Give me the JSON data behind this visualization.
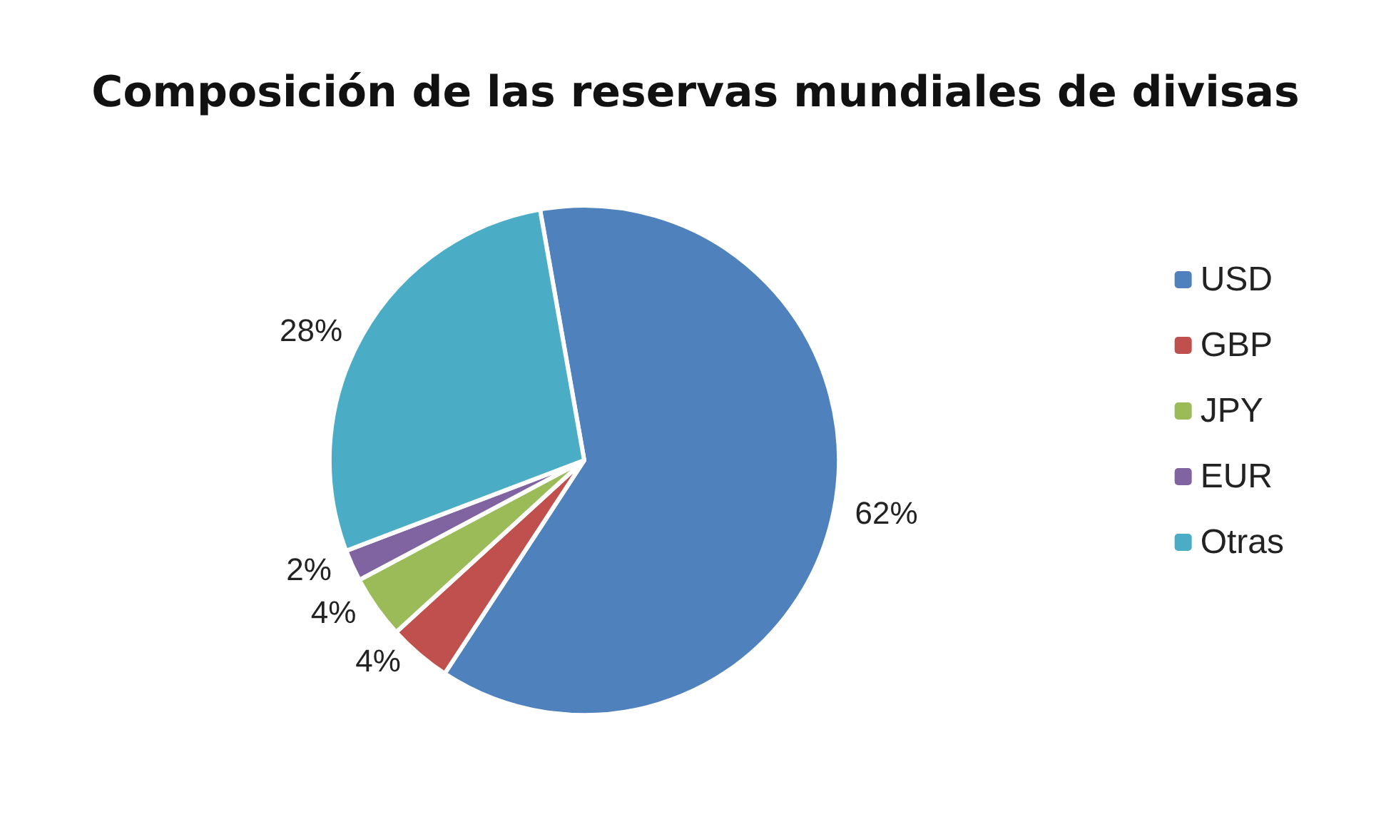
{
  "chart_data": {
    "type": "pie",
    "title": "Composición de las reservas mundiales de divisas",
    "categories": [
      "USD",
      "GBP",
      "JPY",
      "EUR",
      "Otras"
    ],
    "values": [
      62,
      4,
      4,
      2,
      28
    ],
    "colors": [
      "#4f81bd",
      "#c0504d",
      "#9bbb59",
      "#8064a2",
      "#4bacc6"
    ],
    "value_labels": [
      "62%",
      "4%",
      "4%",
      "2%",
      "28%"
    ],
    "legend": "right"
  }
}
